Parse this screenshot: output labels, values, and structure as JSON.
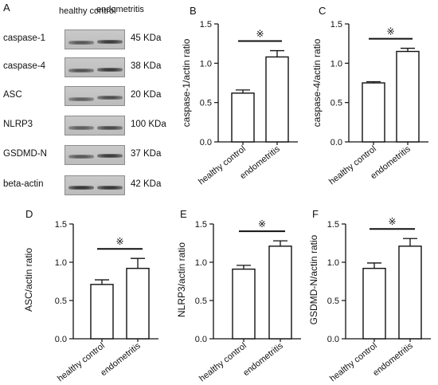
{
  "blot": {
    "panel_letter": "A",
    "column_headers": [
      "healthy control",
      "endometritis"
    ],
    "rows": [
      {
        "protein": "caspase-1",
        "kda": "45 KDa",
        "band_intensity": [
          0.55,
          0.85
        ]
      },
      {
        "protein": "caspase-4",
        "kda": "38 KDa",
        "band_intensity": [
          0.6,
          0.85
        ]
      },
      {
        "protein": "ASC",
        "kda": "20 KDa",
        "band_intensity": [
          0.45,
          0.65
        ]
      },
      {
        "protein": "NLRP3",
        "kda": "100 KDa",
        "band_intensity": [
          0.5,
          0.7
        ]
      },
      {
        "protein": "GSDMD-N",
        "kda": "37 KDa",
        "band_intensity": [
          0.55,
          0.85
        ]
      },
      {
        "protein": "beta-actin",
        "kda": "42 KDa",
        "band_intensity": [
          0.9,
          0.9
        ]
      }
    ]
  },
  "chart_data": [
    {
      "panel": "B",
      "type": "bar",
      "categories": [
        "healthy control",
        "endometritis"
      ],
      "values": [
        0.62,
        1.08
      ],
      "errors": [
        0.04,
        0.08
      ],
      "ylabel": "caspase-1/actin ratio",
      "ylim": [
        0,
        1.5
      ],
      "yticks": [
        "0.0",
        "0.5",
        "1.0",
        "1.5"
      ],
      "significance": "※"
    },
    {
      "panel": "C",
      "type": "bar",
      "categories": [
        "healthy control",
        "endometritis"
      ],
      "values": [
        0.75,
        1.15
      ],
      "errors": [
        0.015,
        0.04
      ],
      "ylabel": "caspase-4/actin ratio",
      "ylim": [
        0,
        1.5
      ],
      "yticks": [
        "0.0",
        "0.5",
        "1.0",
        "1.5"
      ],
      "significance": "※"
    },
    {
      "panel": "D",
      "type": "bar",
      "categories": [
        "healthy control",
        "endometritis"
      ],
      "values": [
        0.71,
        0.92
      ],
      "errors": [
        0.06,
        0.13
      ],
      "ylabel": "ASC/actin ratio",
      "ylim": [
        0,
        1.5
      ],
      "yticks": [
        "0.0",
        "0.5",
        "1.0",
        "1.5"
      ],
      "significance": "※"
    },
    {
      "panel": "E",
      "type": "bar",
      "categories": [
        "healthy control",
        "endometritis"
      ],
      "values": [
        0.91,
        1.21
      ],
      "errors": [
        0.05,
        0.07
      ],
      "ylabel": "NLRP3/actin ratio",
      "ylim": [
        0,
        1.5
      ],
      "yticks": [
        "0.0",
        "0.5",
        "1.0",
        "1.5"
      ],
      "significance": "※"
    },
    {
      "panel": "F",
      "type": "bar",
      "categories": [
        "healthy control",
        "endometritis"
      ],
      "values": [
        0.92,
        1.21
      ],
      "errors": [
        0.07,
        0.1
      ],
      "ylabel": "GSDMD-N/actin ratio",
      "ylim": [
        0,
        1.5
      ],
      "yticks": [
        "0.0",
        "0.5",
        "1.0",
        "1.5"
      ],
      "significance": "※"
    }
  ]
}
